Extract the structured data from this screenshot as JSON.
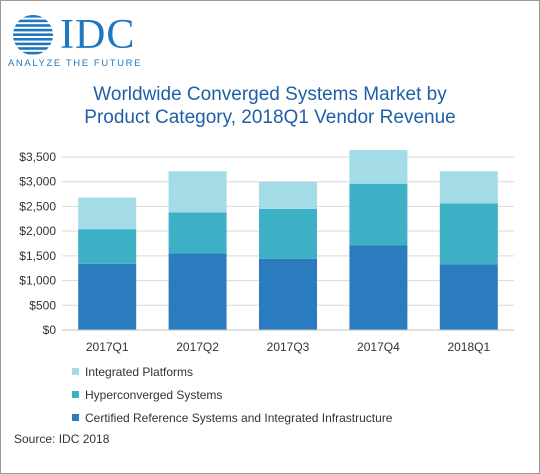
{
  "logo": {
    "name": "IDC",
    "tagline": "ANALYZE THE FUTURE"
  },
  "title_line1": "Worldwide Converged Systems Market by",
  "title_line2": "Product Category, 2018Q1 Vendor Revenue",
  "source": "Source: IDC 2018",
  "colors": {
    "brand": "#1f78bf",
    "integrated": "#a3dbe6",
    "hyper": "#3db0c6",
    "certified": "#2b7bbf"
  },
  "chart_data": {
    "type": "bar",
    "stacked": true,
    "title": "Worldwide Converged Systems Market by Product Category, 2018Q1 Vendor Revenue",
    "categories": [
      "2017Q1",
      "2017Q2",
      "2017Q3",
      "2017Q4",
      "2018Q1"
    ],
    "series": [
      {
        "name": "Certified Reference Systems and Integrated Infrastructure",
        "color": "#2b7bbf",
        "values": [
          1340,
          1550,
          1440,
          1710,
          1330
        ]
      },
      {
        "name": "Hyperconverged Systems",
        "color": "#3db0c6",
        "values": [
          700,
          830,
          1010,
          1250,
          1230
        ]
      },
      {
        "name": "Integrated Platforms",
        "color": "#a3dbe6",
        "values": [
          640,
          830,
          550,
          680,
          650
        ]
      }
    ],
    "y_ticks": [
      "$0",
      "$500",
      "$1,000",
      "$1,500",
      "$2,000",
      "$2,500",
      "$3,000",
      "$3,500"
    ],
    "ylim": [
      0,
      3500
    ],
    "grid": true,
    "legend_position": "bottom"
  }
}
